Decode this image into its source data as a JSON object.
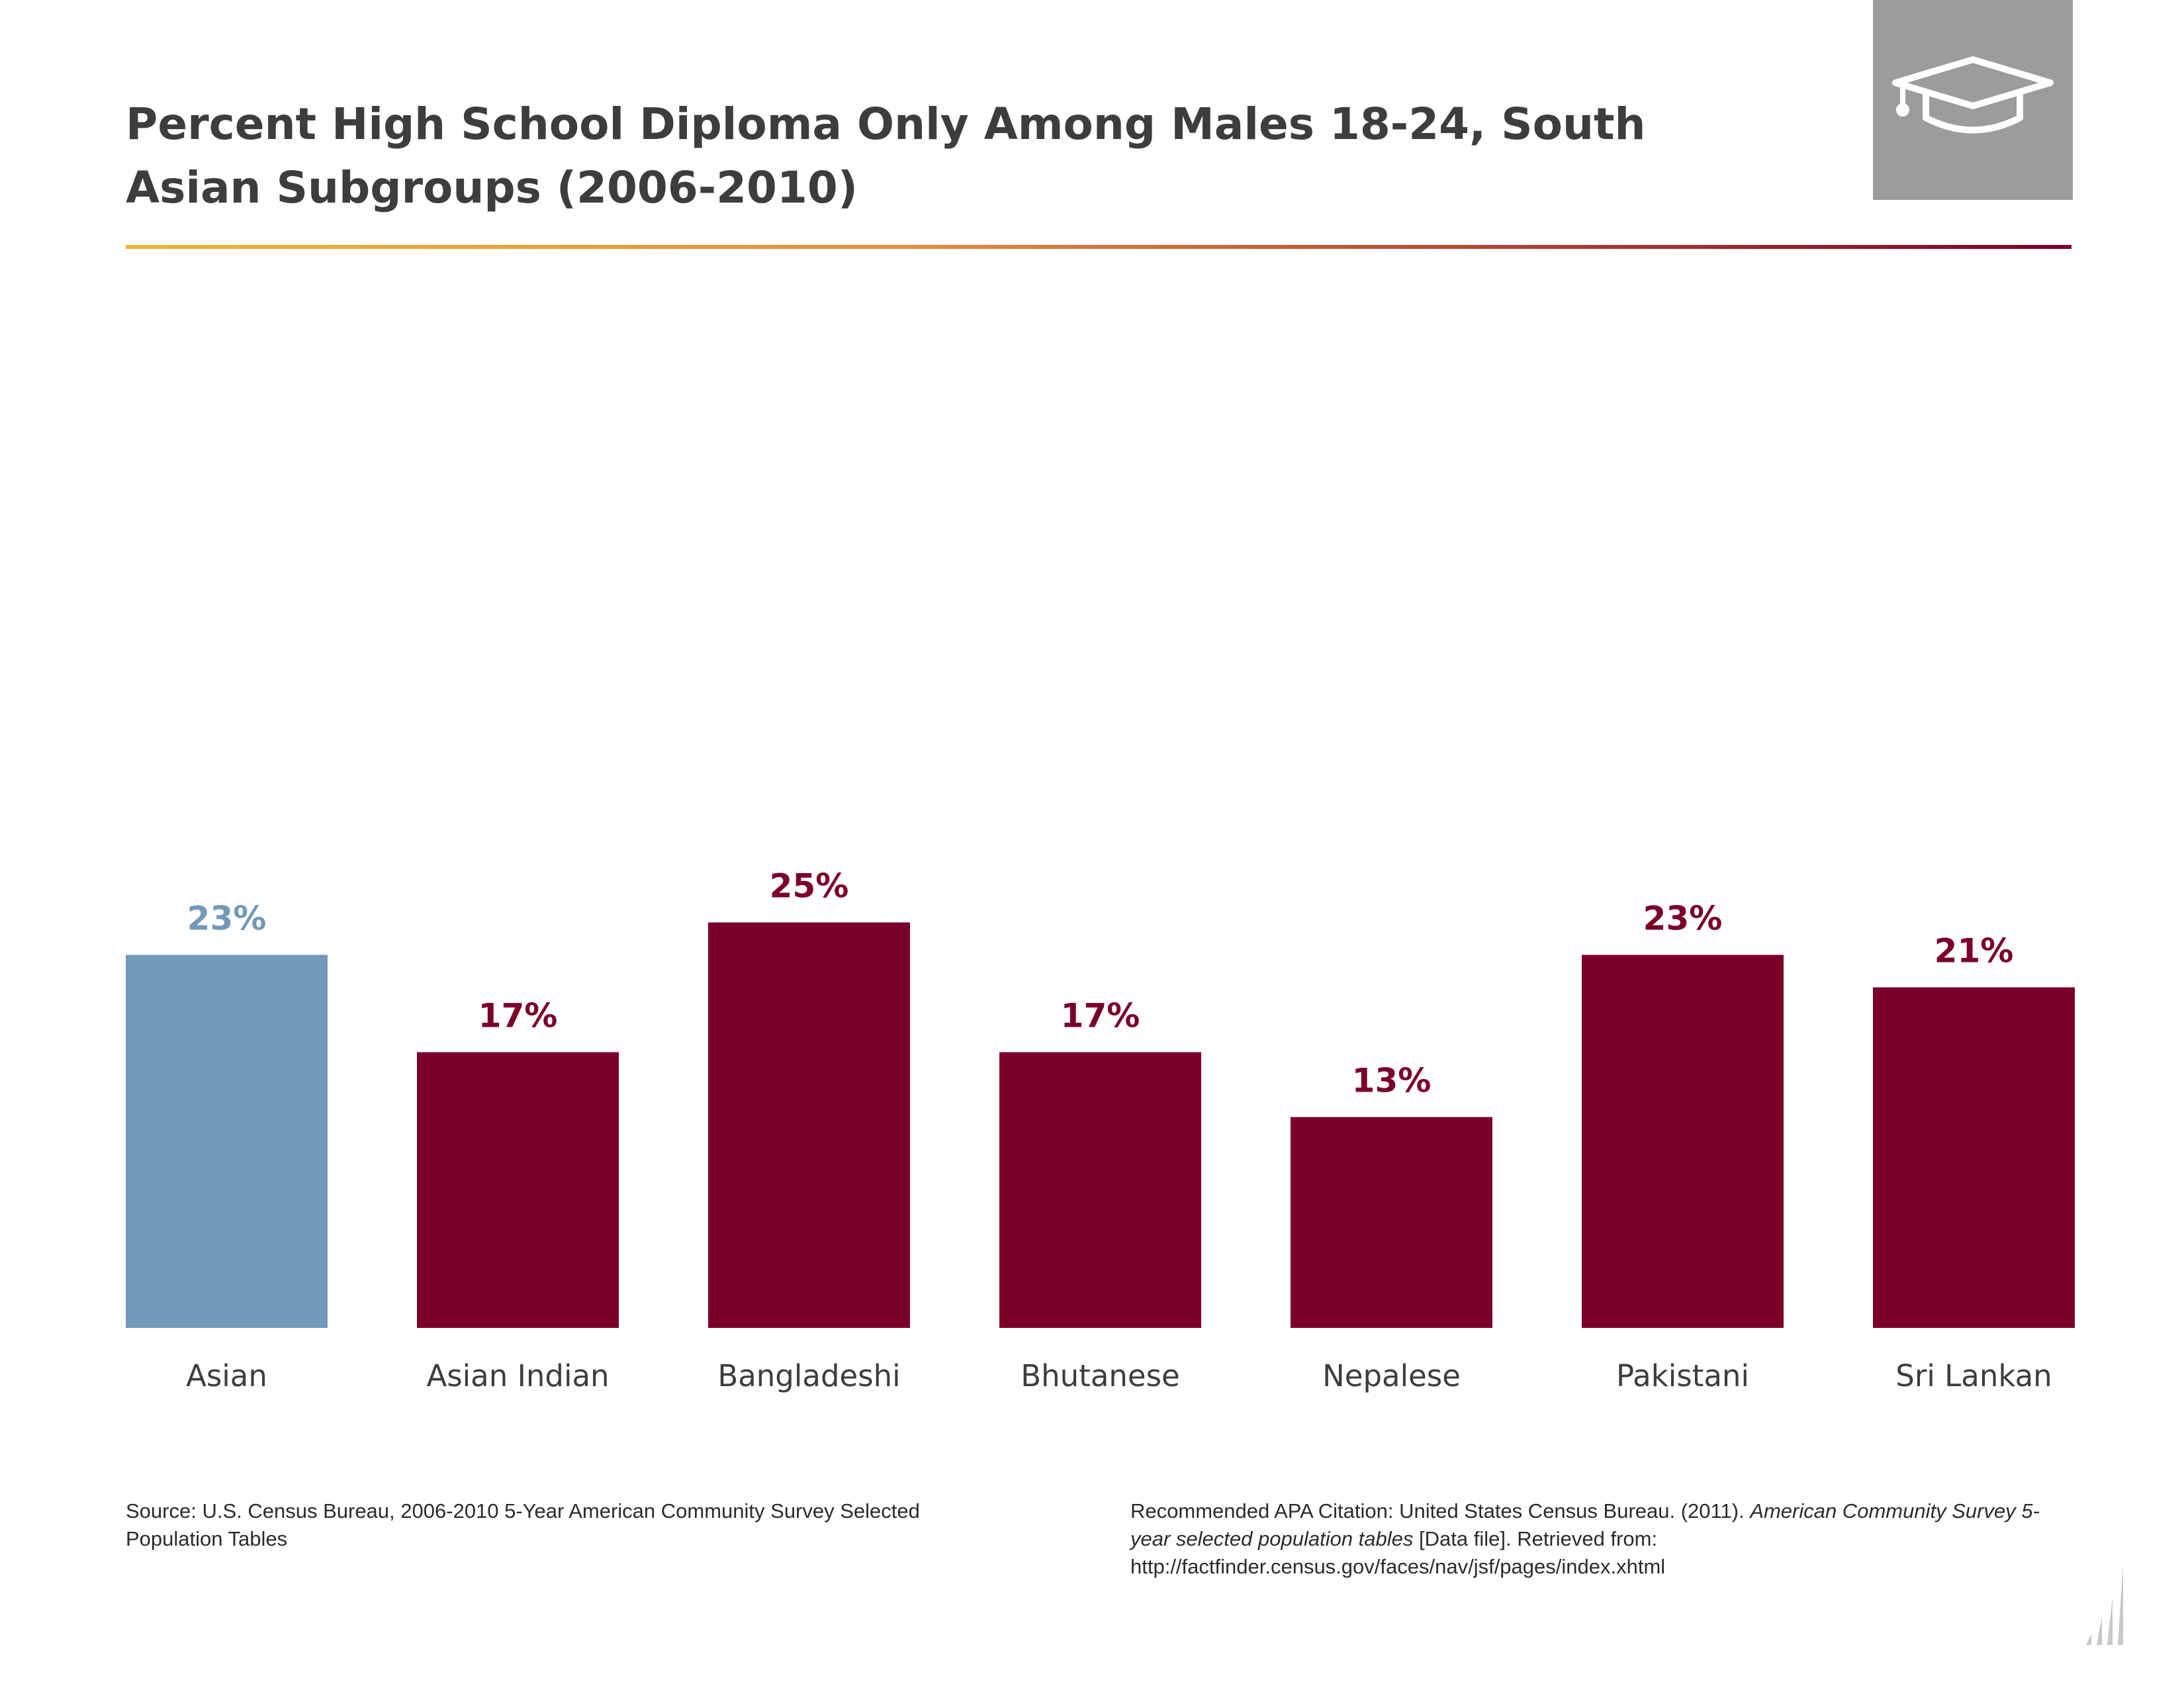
{
  "title": "Percent High School Diploma Only Among Males 18-24, South Asian Subgroups (2006-2010)",
  "badge_icon": "graduation-cap-icon",
  "colors": {
    "highlight": "#7399ba",
    "bar": "#7a0027",
    "rule_start": "#e8b634",
    "rule_mid": "#ec8a3e",
    "rule_end": "#7a0027"
  },
  "chart_data": {
    "type": "bar",
    "title": "Percent High School Diploma Only Among Males 18-24, South Asian Subgroups (2006-2010)",
    "categories": [
      "Asian",
      "Asian Indian",
      "Bangladeshi",
      "Bhutanese",
      "Nepalese",
      "Pakistani",
      "Sri Lankan"
    ],
    "values": [
      23,
      17,
      25,
      17,
      13,
      23,
      21
    ],
    "value_labels": [
      "23%",
      "17%",
      "25%",
      "17%",
      "13%",
      "23%",
      "21%"
    ],
    "highlight_index": 0,
    "ylim": [
      0,
      25
    ],
    "xlabel": "",
    "ylabel": "",
    "grid": false
  },
  "footer": {
    "source": "Source: U.S. Census Bureau, 2006-2010 5-Year American Community Survey Selected Population Tables",
    "citation_prefix": "Recommended APA Citation: United States Census Bureau. (2011). ",
    "citation_title": "American Community Survey 5-year selected population tables",
    "citation_suffix": " [Data file]. Retrieved from: http://factfinder.census.gov/faces/nav/jsf/pages/index.xhtml"
  }
}
